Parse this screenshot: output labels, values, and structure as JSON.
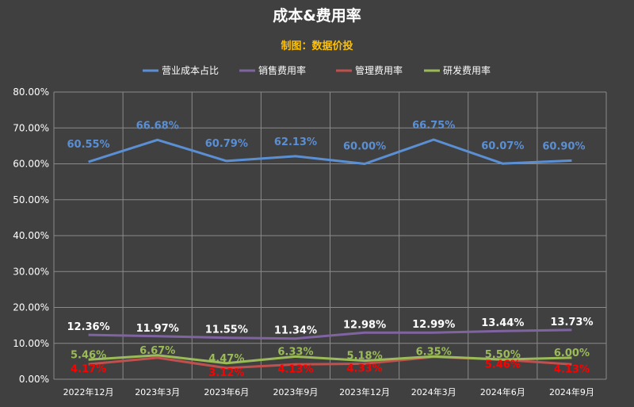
{
  "chart_data": {
    "type": "line",
    "title": "成本&费用率",
    "subtitle": "制图：数据价投",
    "categories": [
      "2022年12月",
      "2023年3月",
      "2023年6月",
      "2023年9月",
      "2023年12月",
      "2024年3月",
      "2024年6月",
      "2024年9月"
    ],
    "ylim": [
      0,
      80
    ],
    "yticks": [
      "0.00%",
      "10.00%",
      "20.00%",
      "30.00%",
      "40.00%",
      "50.00%",
      "60.00%",
      "70.00%",
      "80.00%"
    ],
    "grid": true,
    "legend_position": "top",
    "series": [
      {
        "name": "营业成本占比",
        "color": "#5b8fd4",
        "values": [
          60.55,
          66.68,
          60.79,
          62.13,
          60.0,
          66.75,
          60.07,
          60.9
        ],
        "labels": [
          "60.55%",
          "66.68%",
          "60.79%",
          "62.13%",
          "60.00%",
          "66.75%",
          "60.07%",
          "60.90%"
        ],
        "label_color": "#5b8fd4"
      },
      {
        "name": "销售费用率",
        "color": "#8064a2",
        "values": [
          12.36,
          11.97,
          11.55,
          11.34,
          12.98,
          12.99,
          13.44,
          13.73
        ],
        "labels": [
          "12.36%",
          "11.97%",
          "11.55%",
          "11.34%",
          "12.98%",
          "12.99%",
          "13.44%",
          "13.73%"
        ],
        "label_color": "#ffffff"
      },
      {
        "name": "管理费用率",
        "color": "#c0504d",
        "values": [
          4.17,
          6.0,
          3.12,
          4.13,
          4.33,
          6.2,
          5.46,
          4.13
        ],
        "labels": [
          "4.17%",
          "",
          "3.12%",
          "4.13%",
          "4.33%",
          "",
          "5.46%",
          "4.13%"
        ],
        "label_color": "#ff0000"
      },
      {
        "name": "研发费用率",
        "color": "#9bbb59",
        "values": [
          5.46,
          6.67,
          4.47,
          6.33,
          5.18,
          6.35,
          5.5,
          6.0
        ],
        "labels": [
          "5.46%",
          "6.67%",
          "4.47%",
          "6.33%",
          "5.18%",
          "6.35%",
          "5.50%",
          "6.00%"
        ],
        "label_color": "#9bbb59"
      }
    ]
  }
}
